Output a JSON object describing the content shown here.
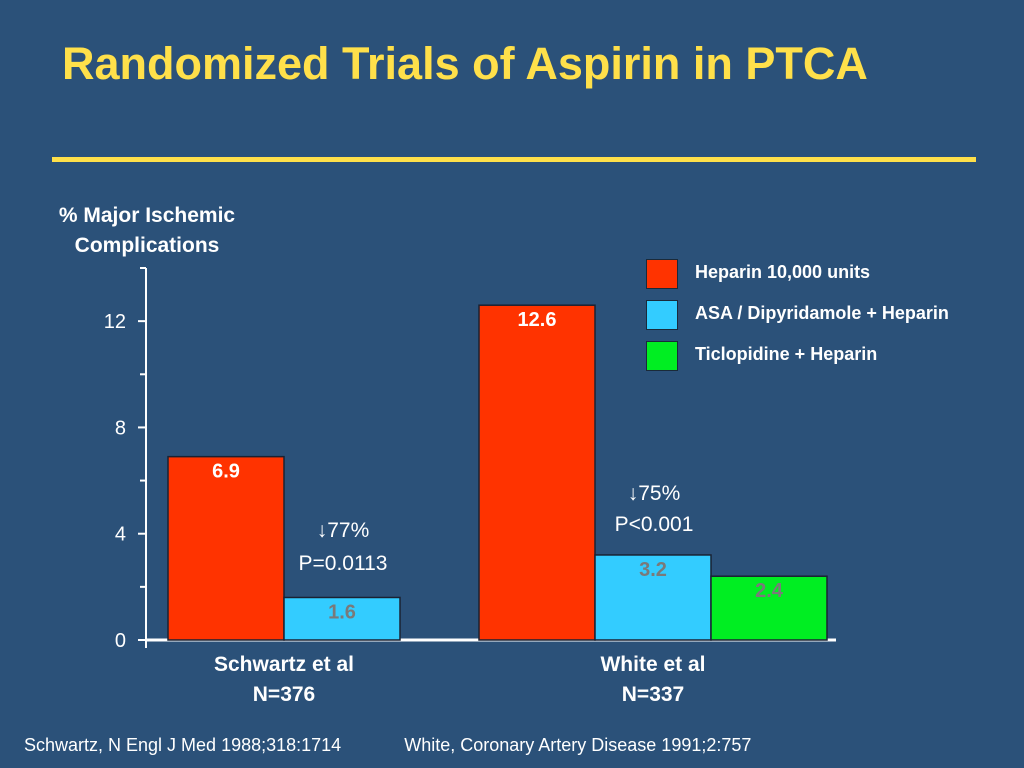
{
  "slide": {
    "title": "Randomized Trials of Aspirin in PTCA",
    "citations": [
      "Schwartz,  N Engl J Med  1988;318:1714",
      "White,  Coronary Artery Disease 1991;2:757"
    ]
  },
  "colors": {
    "background": "#2b5179",
    "title": "#ffe04a",
    "heparin": "#ff3300",
    "asa": "#33ccff",
    "ticlopidine": "#00ee22"
  },
  "chart_data": {
    "type": "bar",
    "title": "",
    "ylabel": "% Major Ischemic Complications",
    "ylim": [
      0,
      14
    ],
    "yticks": [
      0,
      4,
      8,
      12
    ],
    "ytick_labels": [
      "0",
      "4",
      "8",
      "12"
    ],
    "minor_ticks": [
      2,
      6,
      10,
      14
    ],
    "categories": [
      {
        "name": "Schwartz et al",
        "n_label": "N=376"
      },
      {
        "name": "White et al",
        "n_label": "N=337"
      }
    ],
    "series": [
      {
        "name": "Heparin 10,000 units",
        "color": "#ff3300",
        "values": [
          6.9,
          12.6
        ],
        "labels": [
          "6.9",
          "12.6"
        ]
      },
      {
        "name": "ASA / Dipyridamole + Heparin",
        "color": "#33ccff",
        "values": [
          1.6,
          3.2
        ],
        "labels": [
          "1.6",
          "3.2"
        ]
      },
      {
        "name": "Ticlopidine + Heparin",
        "color": "#00ee22",
        "values": [
          null,
          2.4
        ],
        "labels": [
          null,
          "2.4"
        ]
      }
    ],
    "annotations": [
      {
        "category": 0,
        "text": "↓77%",
        "subtext": "P=0.0113"
      },
      {
        "category": 1,
        "text": "↓75%",
        "subtext": "P<0.001"
      }
    ],
    "grid": false,
    "legend": "top-right"
  }
}
